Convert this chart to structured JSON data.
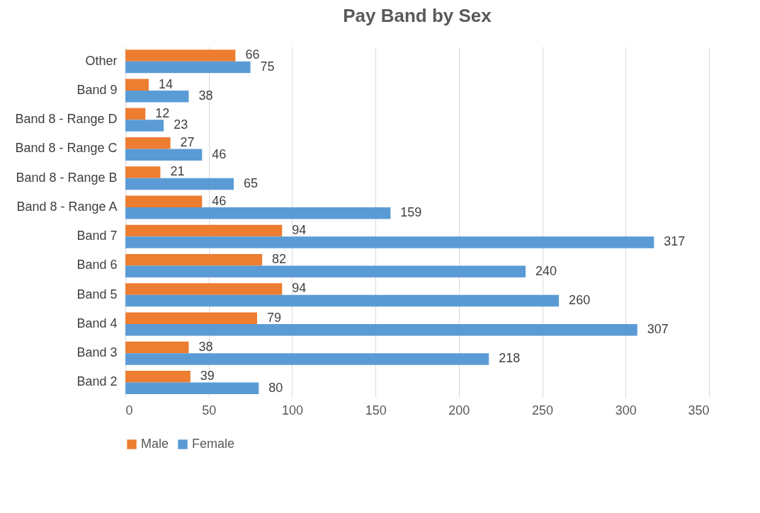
{
  "chart_data": {
    "type": "bar",
    "title": "Pay Band by Sex",
    "orientation": "horizontal",
    "categories": [
      "Other",
      "Band 9",
      "Band 8 - Range D",
      "Band 8 - Range C",
      "Band 8 - Range B",
      "Band 8 - Range A",
      "Band 7",
      "Band 6",
      "Band 5",
      "Band 4",
      "Band 3",
      "Band 2"
    ],
    "series": [
      {
        "name": "Male",
        "color": "#ed7d31",
        "values": [
          66,
          14,
          12,
          27,
          21,
          46,
          94,
          82,
          94,
          79,
          38,
          39
        ]
      },
      {
        "name": "Female",
        "color": "#5b9bd5",
        "values": [
          75,
          38,
          23,
          46,
          65,
          159,
          317,
          240,
          260,
          307,
          218,
          80
        ]
      }
    ],
    "xlim": [
      0,
      350
    ],
    "xticks": [
      0,
      50,
      100,
      150,
      200,
      250,
      300,
      350
    ],
    "grid": "x",
    "legend": "bottom",
    "data_labels": true
  }
}
